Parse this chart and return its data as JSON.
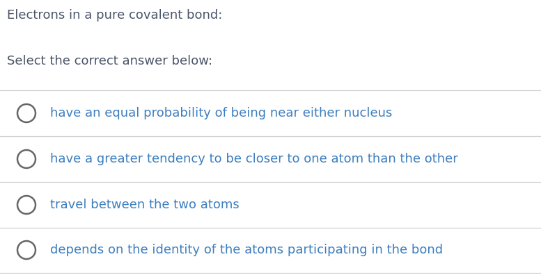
{
  "background_color": "#ffffff",
  "title_text": "Electrons in a pure covalent bond:",
  "subtitle_text": "Select the correct answer below:",
  "options": [
    "have an equal probability of being near either nucleus",
    "have a greater tendency to be closer to one atom than the other",
    "travel between the two atoms",
    "depends on the identity of the atoms participating in the bond"
  ],
  "title_color": "#4a5568",
  "subtitle_color": "#4a5568",
  "option_text_color": "#3d7ebf",
  "circle_edge_color": "#666666",
  "line_color": "#d0d0d0",
  "title_fontsize": 13.0,
  "subtitle_fontsize": 13.0,
  "option_fontsize": 13.0,
  "fig_width": 7.77,
  "fig_height": 3.96,
  "dpi": 100
}
